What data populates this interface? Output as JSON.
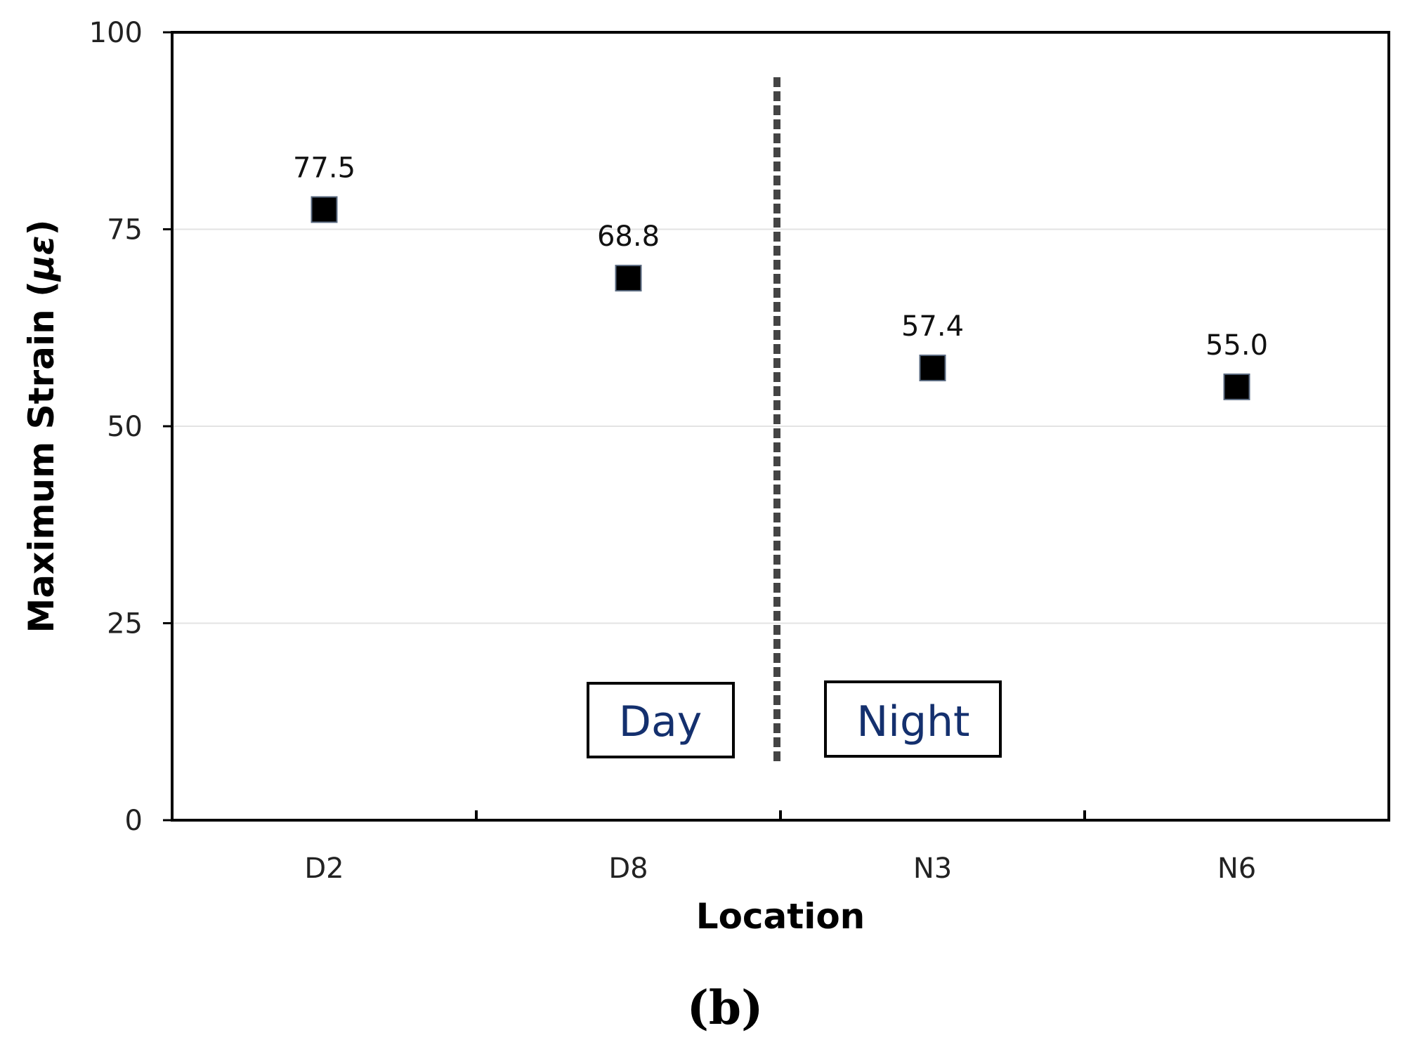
{
  "chart_data": {
    "type": "scatter",
    "categories": [
      "D2",
      "D8",
      "N3",
      "N6"
    ],
    "values": [
      77.5,
      68.8,
      57.4,
      55.0
    ],
    "value_labels": [
      "77.5",
      "68.8",
      "57.4",
      "55.0"
    ],
    "xlabel": "Location",
    "ylabel_main": "Maximum Strain (",
    "ylabel_symbol": "με",
    "ylabel_close": ")",
    "ylim": [
      0,
      100
    ],
    "yticks": [
      0,
      25,
      50,
      75,
      100
    ],
    "ytick_labels": [
      "0",
      "25",
      "50",
      "75",
      "100"
    ],
    "grid": true,
    "divider_between": [
      "D8",
      "N3"
    ],
    "region_labels": [
      "Day",
      "Night"
    ],
    "panel_label": "(b)",
    "marker_color": "#000000",
    "divider_color": "#444444",
    "region_text_color": "#14306e"
  }
}
